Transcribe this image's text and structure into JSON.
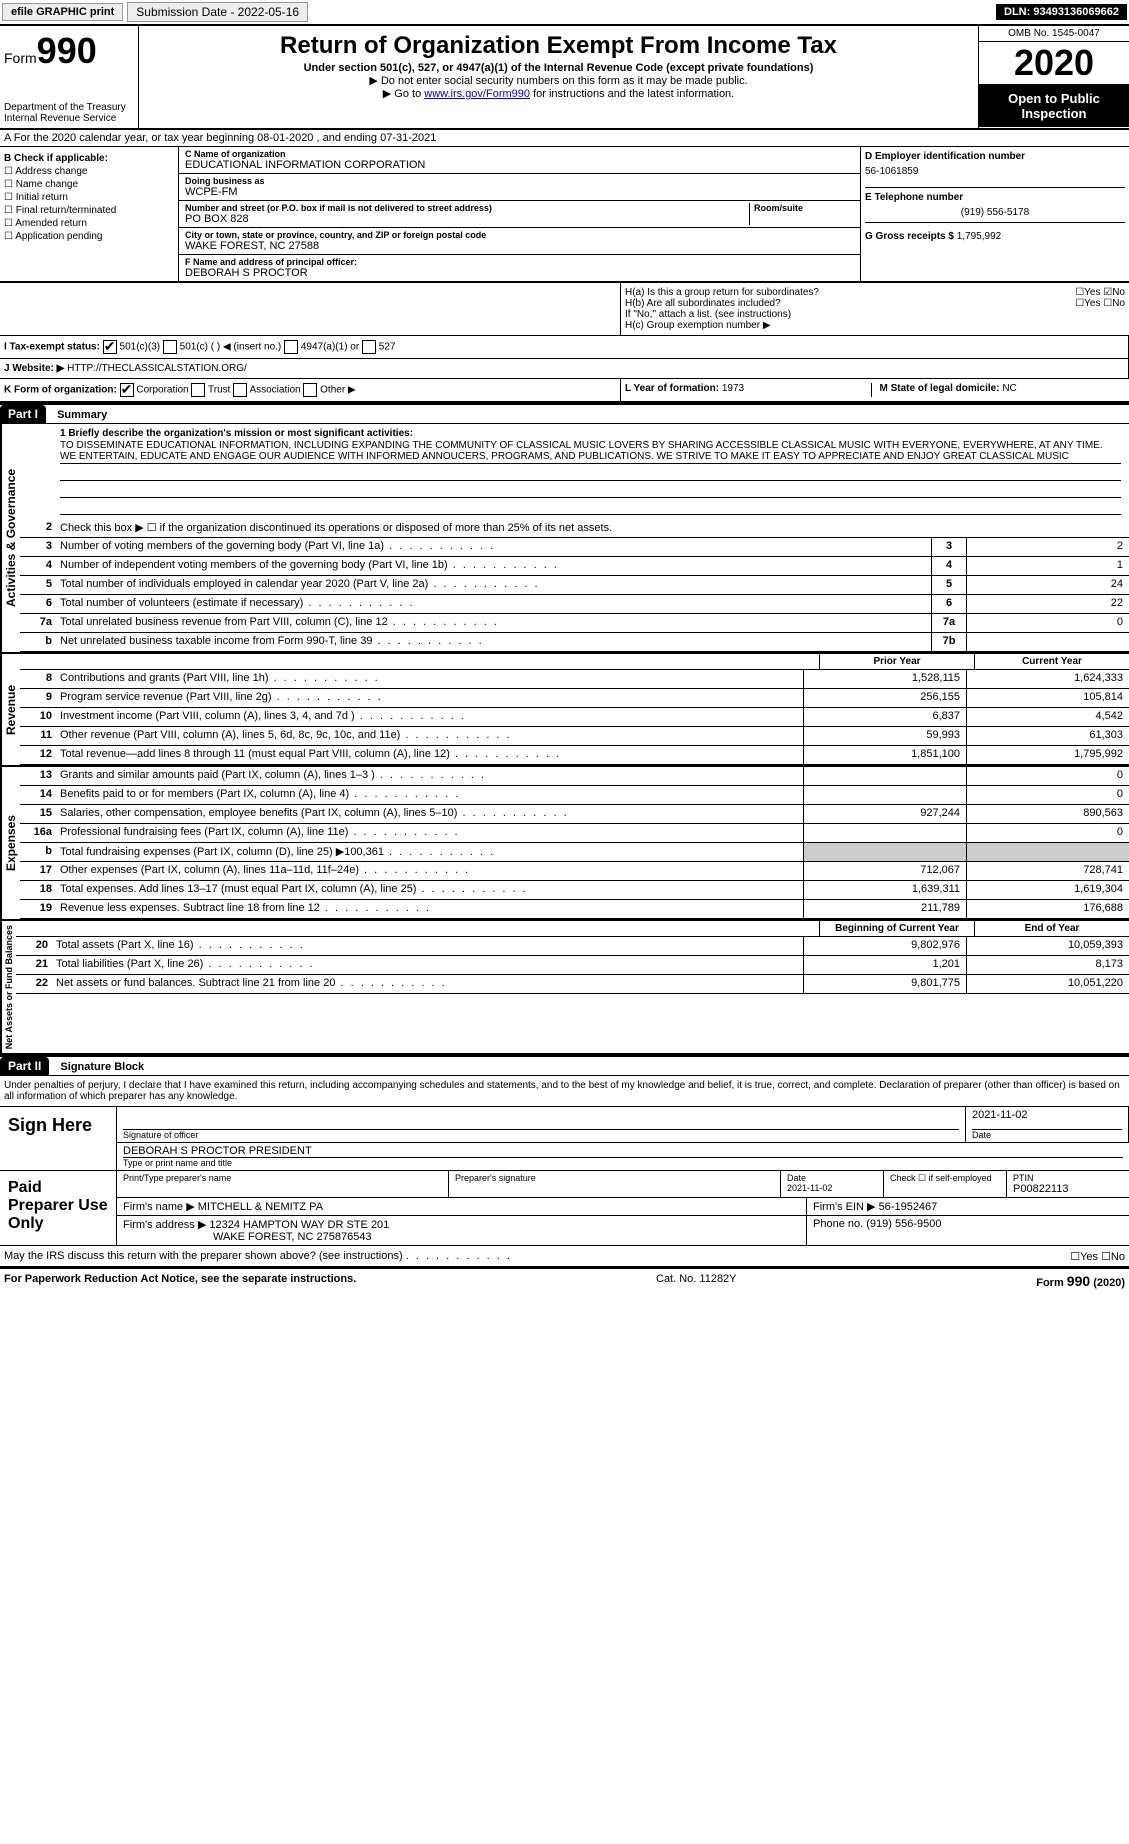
{
  "topbar": {
    "efile": "efile GRAPHIC print",
    "submission": "Submission Date - 2022-05-16",
    "dln": "DLN: 93493136069662"
  },
  "header": {
    "form_prefix": "Form",
    "form_num": "990",
    "dept": "Department of the Treasury\nInternal Revenue Service",
    "title": "Return of Organization Exempt From Income Tax",
    "subtitle": "Under section 501(c), 527, or 4947(a)(1) of the Internal Revenue Code (except private foundations)",
    "note1": "▶ Do not enter social security numbers on this form as it may be made public.",
    "note2_pre": "▶ Go to ",
    "note2_link": "www.irs.gov/Form990",
    "note2_post": " for instructions and the latest information.",
    "omb": "OMB No. 1545-0047",
    "year": "2020",
    "open": "Open to Public Inspection"
  },
  "section_a": "A For the 2020 calendar year, or tax year beginning 08-01-2020    , and ending 07-31-2021",
  "col_b": {
    "title": "B Check if applicable:",
    "items": [
      "Address change",
      "Name change",
      "Initial return",
      "Final return/terminated",
      "Amended return",
      "Application pending"
    ]
  },
  "col_c": {
    "name_label": "C Name of organization",
    "name": "EDUCATIONAL INFORMATION CORPORATION",
    "dba_label": "Doing business as",
    "dba": "WCPE-FM",
    "addr_label": "Number and street (or P.O. box if mail is not delivered to street address)",
    "addr": "PO BOX 828",
    "room_label": "Room/suite",
    "city_label": "City or town, state or province, country, and ZIP or foreign postal code",
    "city": "WAKE FOREST, NC  27588",
    "officer_label": "F Name and address of principal officer:",
    "officer": "DEBORAH S PROCTOR"
  },
  "col_d": {
    "ein_label": "D Employer identification number",
    "ein": "56-1061859",
    "phone_label": "E Telephone number",
    "phone": "(919) 556-5178",
    "gross_label": "G Gross receipts $",
    "gross": "1,795,992"
  },
  "section_h": {
    "ha": "H(a)  Is this a group return for subordinates?",
    "hb": "H(b)  Are all subordinates included?",
    "hb_note": "If \"No,\" attach a list. (see instructions)",
    "hc": "H(c)  Group exemption number ▶"
  },
  "tax_status": {
    "label": "I  Tax-exempt status:",
    "opts": [
      "501(c)(3)",
      "501(c) (  ) ◀ (insert no.)",
      "4947(a)(1) or",
      "527"
    ]
  },
  "website": {
    "label": "J Website: ▶",
    "val": "HTTP://THECLASSICALSTATION.ORG/"
  },
  "k_form": {
    "label": "K Form of organization:",
    "opts": [
      "Corporation",
      "Trust",
      "Association",
      "Other ▶"
    ]
  },
  "l_year": {
    "label": "L Year of formation:",
    "val": "1973"
  },
  "m_state": {
    "label": "M State of legal domicile:",
    "val": "NC"
  },
  "part1": {
    "hdr": "Part I",
    "title": "Summary",
    "mission_label": "1  Briefly describe the organization's mission or most significant activities:",
    "mission": "TO DISSEMINATE EDUCATIONAL INFORMATION, INCLUDING EXPANDING THE COMMUNITY OF CLASSICAL MUSIC LOVERS BY SHARING ACCESSIBLE CLASSICAL MUSIC WITH EVERYONE, EVERYWHERE, AT ANY TIME. WE ENTERTAIN, EDUCATE AND ENGAGE OUR AUDIENCE WITH INFORMED ANNOUCERS, PROGRAMS, AND PUBLICATIONS. WE STRIVE TO MAKE IT EASY TO APPRECIATE AND ENJOY GREAT CLASSICAL MUSIC",
    "line2": "Check this box ▶ ☐ if the organization discontinued its operations or disposed of more than 25% of its net assets.",
    "vert1": "Activities & Governance",
    "vert2": "Revenue",
    "vert3": "Expenses",
    "vert4": "Net Assets or Fund Balances",
    "prior": "Prior Year",
    "current": "Current Year",
    "begin": "Beginning of Current Year",
    "end": "End of Year",
    "lines_gov": [
      {
        "n": "3",
        "d": "Number of voting members of the governing body (Part VI, line 1a)",
        "box": "3",
        "v": "2"
      },
      {
        "n": "4",
        "d": "Number of independent voting members of the governing body (Part VI, line 1b)",
        "box": "4",
        "v": "1"
      },
      {
        "n": "5",
        "d": "Total number of individuals employed in calendar year 2020 (Part V, line 2a)",
        "box": "5",
        "v": "24"
      },
      {
        "n": "6",
        "d": "Total number of volunteers (estimate if necessary)",
        "box": "6",
        "v": "22"
      },
      {
        "n": "7a",
        "d": "Total unrelated business revenue from Part VIII, column (C), line 12",
        "box": "7a",
        "v": "0"
      },
      {
        "n": "b",
        "d": "Net unrelated business taxable income from Form 990-T, line 39",
        "box": "7b",
        "v": ""
      }
    ],
    "lines_rev": [
      {
        "n": "8",
        "d": "Contributions and grants (Part VIII, line 1h)",
        "p": "1,528,115",
        "c": "1,624,333"
      },
      {
        "n": "9",
        "d": "Program service revenue (Part VIII, line 2g)",
        "p": "256,155",
        "c": "105,814"
      },
      {
        "n": "10",
        "d": "Investment income (Part VIII, column (A), lines 3, 4, and 7d )",
        "p": "6,837",
        "c": "4,542"
      },
      {
        "n": "11",
        "d": "Other revenue (Part VIII, column (A), lines 5, 6d, 8c, 9c, 10c, and 11e)",
        "p": "59,993",
        "c": "61,303"
      },
      {
        "n": "12",
        "d": "Total revenue—add lines 8 through 11 (must equal Part VIII, column (A), line 12)",
        "p": "1,851,100",
        "c": "1,795,992"
      }
    ],
    "lines_exp": [
      {
        "n": "13",
        "d": "Grants and similar amounts paid (Part IX, column (A), lines 1–3 )",
        "p": "",
        "c": "0"
      },
      {
        "n": "14",
        "d": "Benefits paid to or for members (Part IX, column (A), line 4)",
        "p": "",
        "c": "0"
      },
      {
        "n": "15",
        "d": "Salaries, other compensation, employee benefits (Part IX, column (A), lines 5–10)",
        "p": "927,244",
        "c": "890,563"
      },
      {
        "n": "16a",
        "d": "Professional fundraising fees (Part IX, column (A), line 11e)",
        "p": "",
        "c": "0"
      },
      {
        "n": "b",
        "d": "Total fundraising expenses (Part IX, column (D), line 25) ▶100,361",
        "p": "",
        "c": "",
        "grey": true
      },
      {
        "n": "17",
        "d": "Other expenses (Part IX, column (A), lines 11a–11d, 11f–24e)",
        "p": "712,067",
        "c": "728,741"
      },
      {
        "n": "18",
        "d": "Total expenses. Add lines 13–17 (must equal Part IX, column (A), line 25)",
        "p": "1,639,311",
        "c": "1,619,304"
      },
      {
        "n": "19",
        "d": "Revenue less expenses. Subtract line 18 from line 12",
        "p": "211,789",
        "c": "176,688"
      }
    ],
    "lines_net": [
      {
        "n": "20",
        "d": "Total assets (Part X, line 16)",
        "p": "9,802,976",
        "c": "10,059,393"
      },
      {
        "n": "21",
        "d": "Total liabilities (Part X, line 26)",
        "p": "1,201",
        "c": "8,173"
      },
      {
        "n": "22",
        "d": "Net assets or fund balances. Subtract line 21 from line 20",
        "p": "9,801,775",
        "c": "10,051,220"
      }
    ]
  },
  "part2": {
    "hdr": "Part II",
    "title": "Signature Block",
    "declaration": "Under penalties of perjury, I declare that I have examined this return, including accompanying schedules and statements, and to the best of my knowledge and belief, it is true, correct, and complete. Declaration of preparer (other than officer) is based on all information of which preparer has any knowledge.",
    "sign_here": "Sign Here",
    "sig_officer": "Signature of officer",
    "sig_date": "Date",
    "sig_date_val": "2021-11-02",
    "sig_name": "DEBORAH S PROCTOR  PRESIDENT",
    "sig_name_label": "Type or print name and title",
    "paid": "Paid Preparer Use Only",
    "prep_name_label": "Print/Type preparer's name",
    "prep_sig_label": "Preparer's signature",
    "prep_date_label": "Date",
    "prep_date": "2021-11-02",
    "prep_self": "Check ☐ if self-employed",
    "ptin_label": "PTIN",
    "ptin": "P00822113",
    "firm_name_label": "Firm's name    ▶",
    "firm_name": "MITCHELL & NEMITZ PA",
    "firm_ein_label": "Firm's EIN ▶",
    "firm_ein": "56-1952467",
    "firm_addr_label": "Firm's address ▶",
    "firm_addr": "12324 HAMPTON WAY DR STE 201",
    "firm_city": "WAKE FOREST, NC  275876543",
    "firm_phone_label": "Phone no.",
    "firm_phone": "(919) 556-9500",
    "discuss": "May the IRS discuss this return with the preparer shown above? (see instructions)"
  },
  "footer": {
    "left": "For Paperwork Reduction Act Notice, see the separate instructions.",
    "mid": "Cat. No. 11282Y",
    "right": "Form 990 (2020)"
  }
}
